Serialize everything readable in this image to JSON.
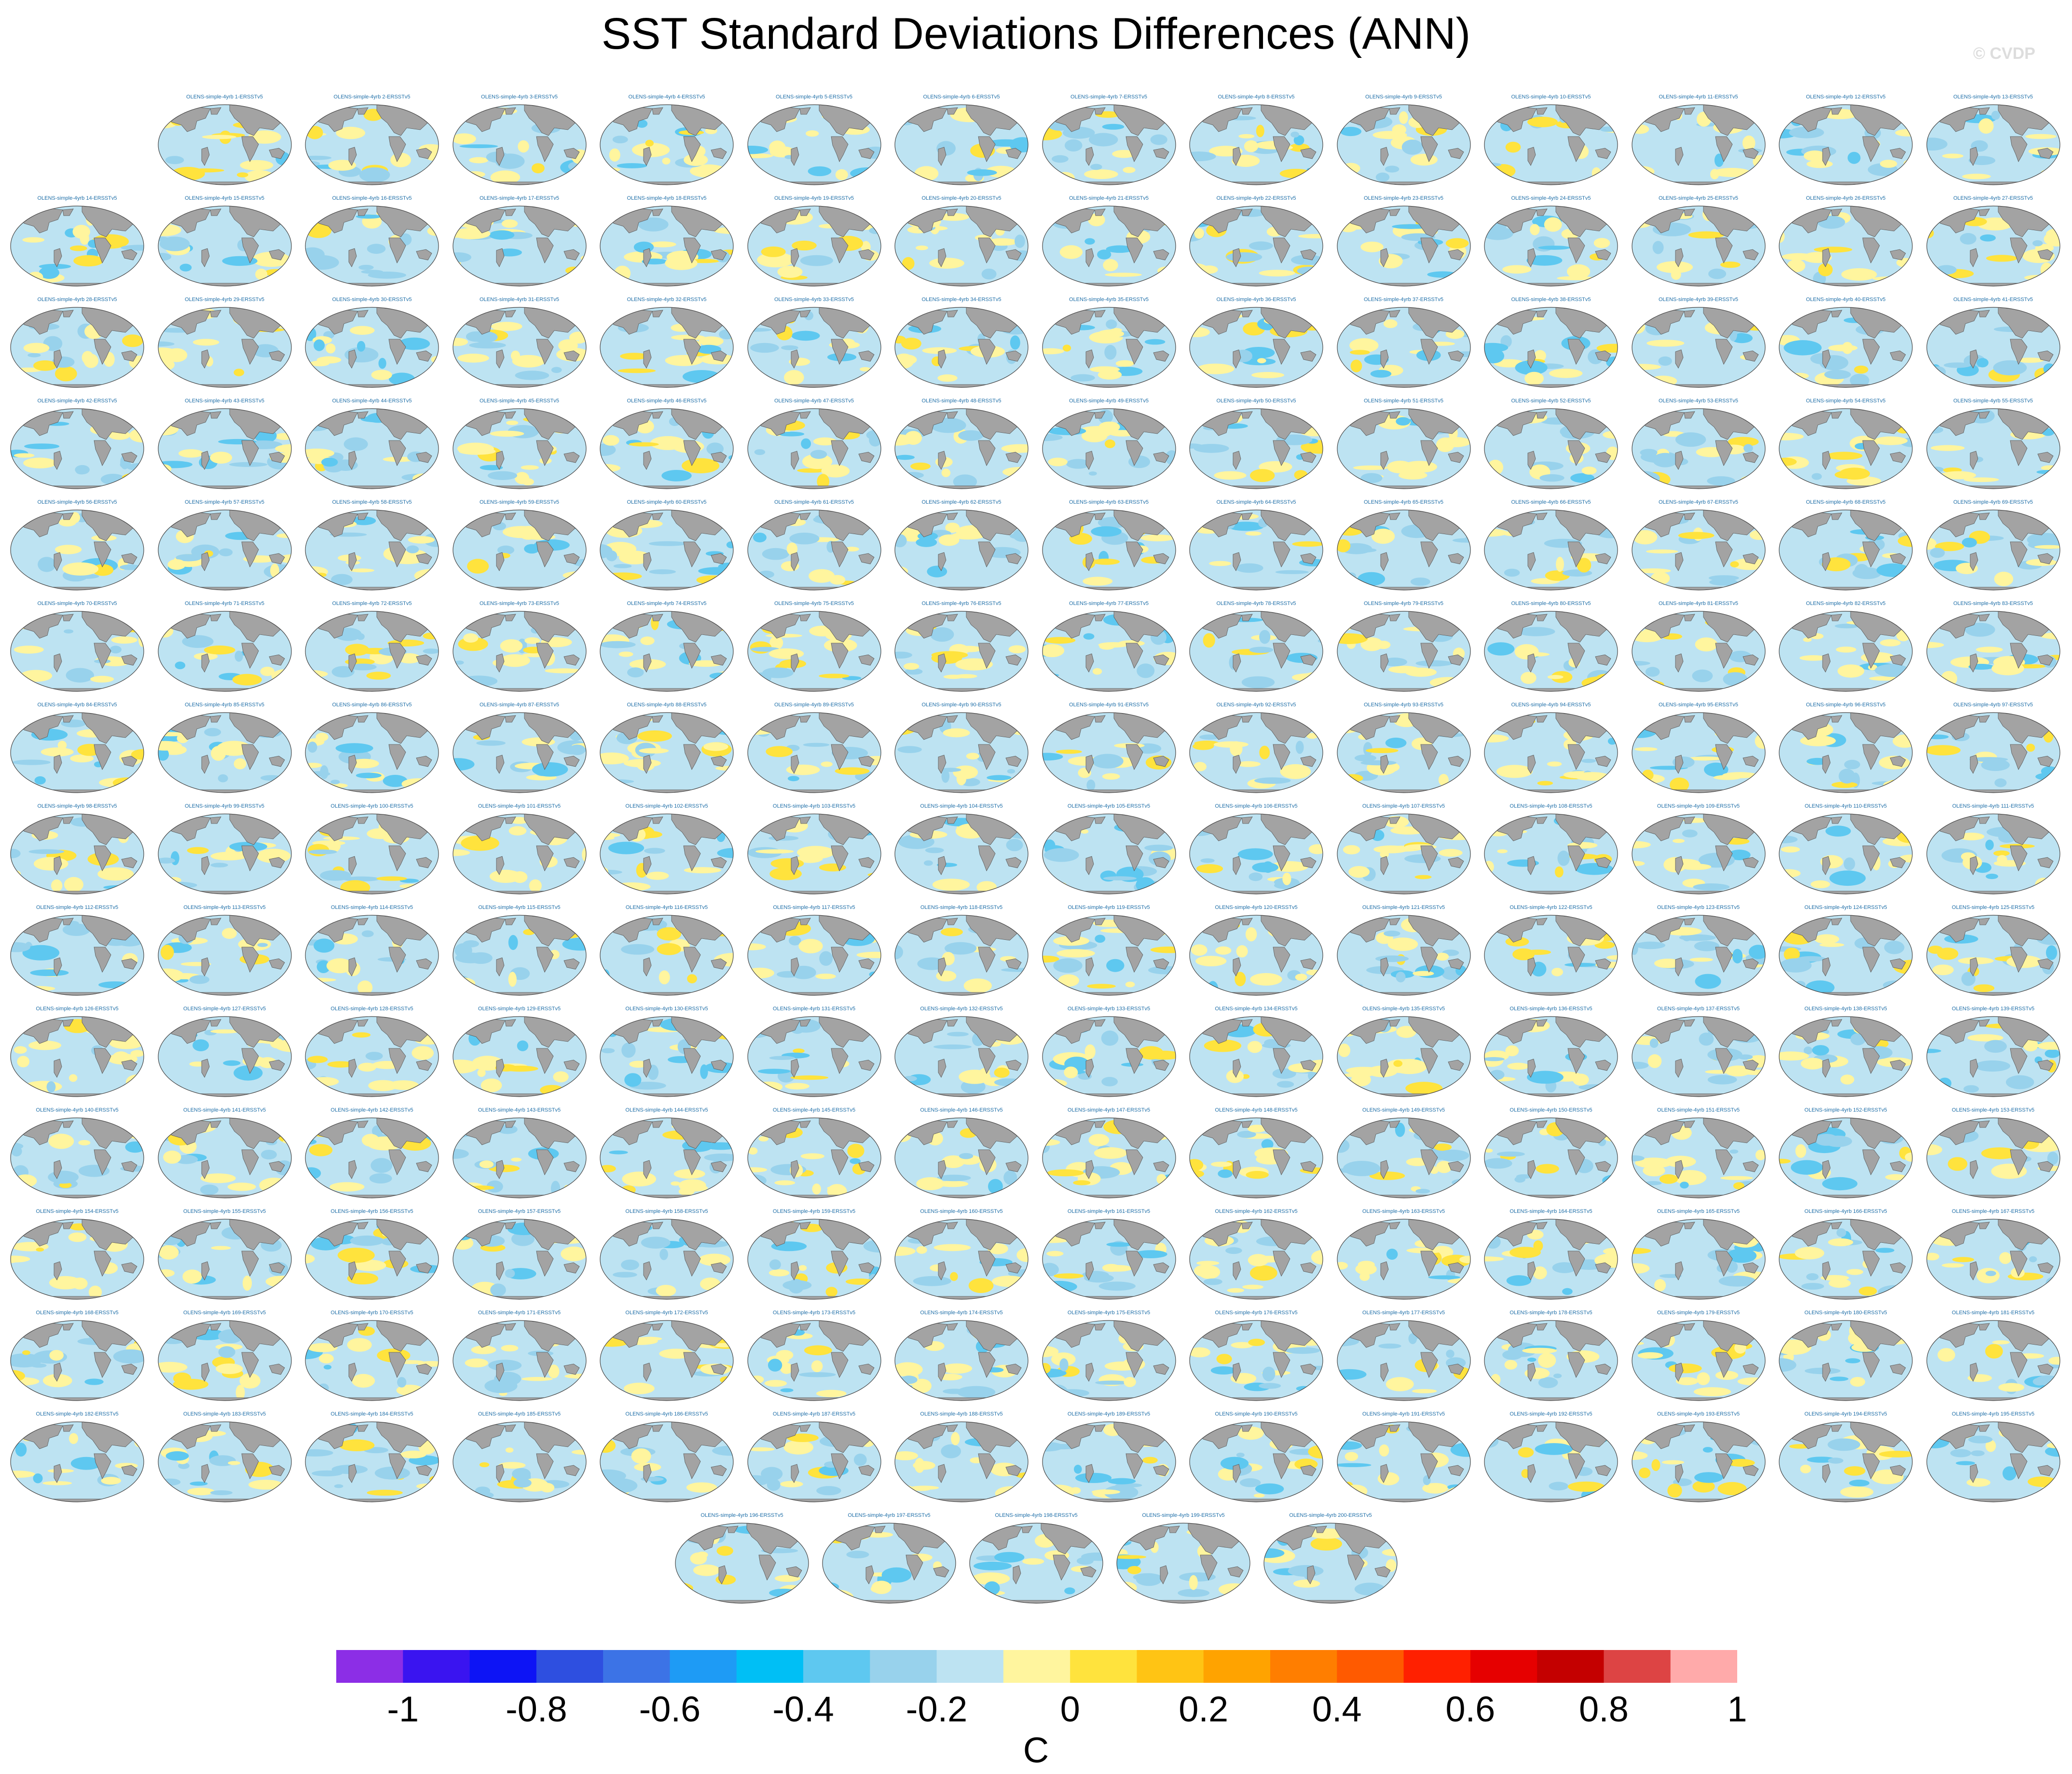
{
  "title": "SST Standard Deviations Differences (ANN)",
  "watermark": "© CVDP",
  "panel_title_prefix": "OLENS-simple-4yrb ",
  "panel_title_suffix": "-ERSSTv5",
  "panel_count": 200,
  "colorbar": {
    "colors": [
      "#8c2ee6",
      "#3a14f0",
      "#0d14f5",
      "#2e4fe0",
      "#3c73e6",
      "#1e9bf5",
      "#00bff5",
      "#5ec8f0",
      "#98d2ec",
      "#bde3f2",
      "#fff59e",
      "#ffe33d",
      "#ffc414",
      "#ffa300",
      "#ff7e00",
      "#ff5a00",
      "#ff2000",
      "#e60000",
      "#c40000",
      "#dd4444",
      "#ffaaaa"
    ],
    "ticks": [
      "-1",
      "-0.8",
      "-0.6",
      "-0.4",
      "-0.2",
      "0",
      "0.2",
      "0.4",
      "0.6",
      "0.8",
      "1"
    ],
    "units": "C"
  }
}
